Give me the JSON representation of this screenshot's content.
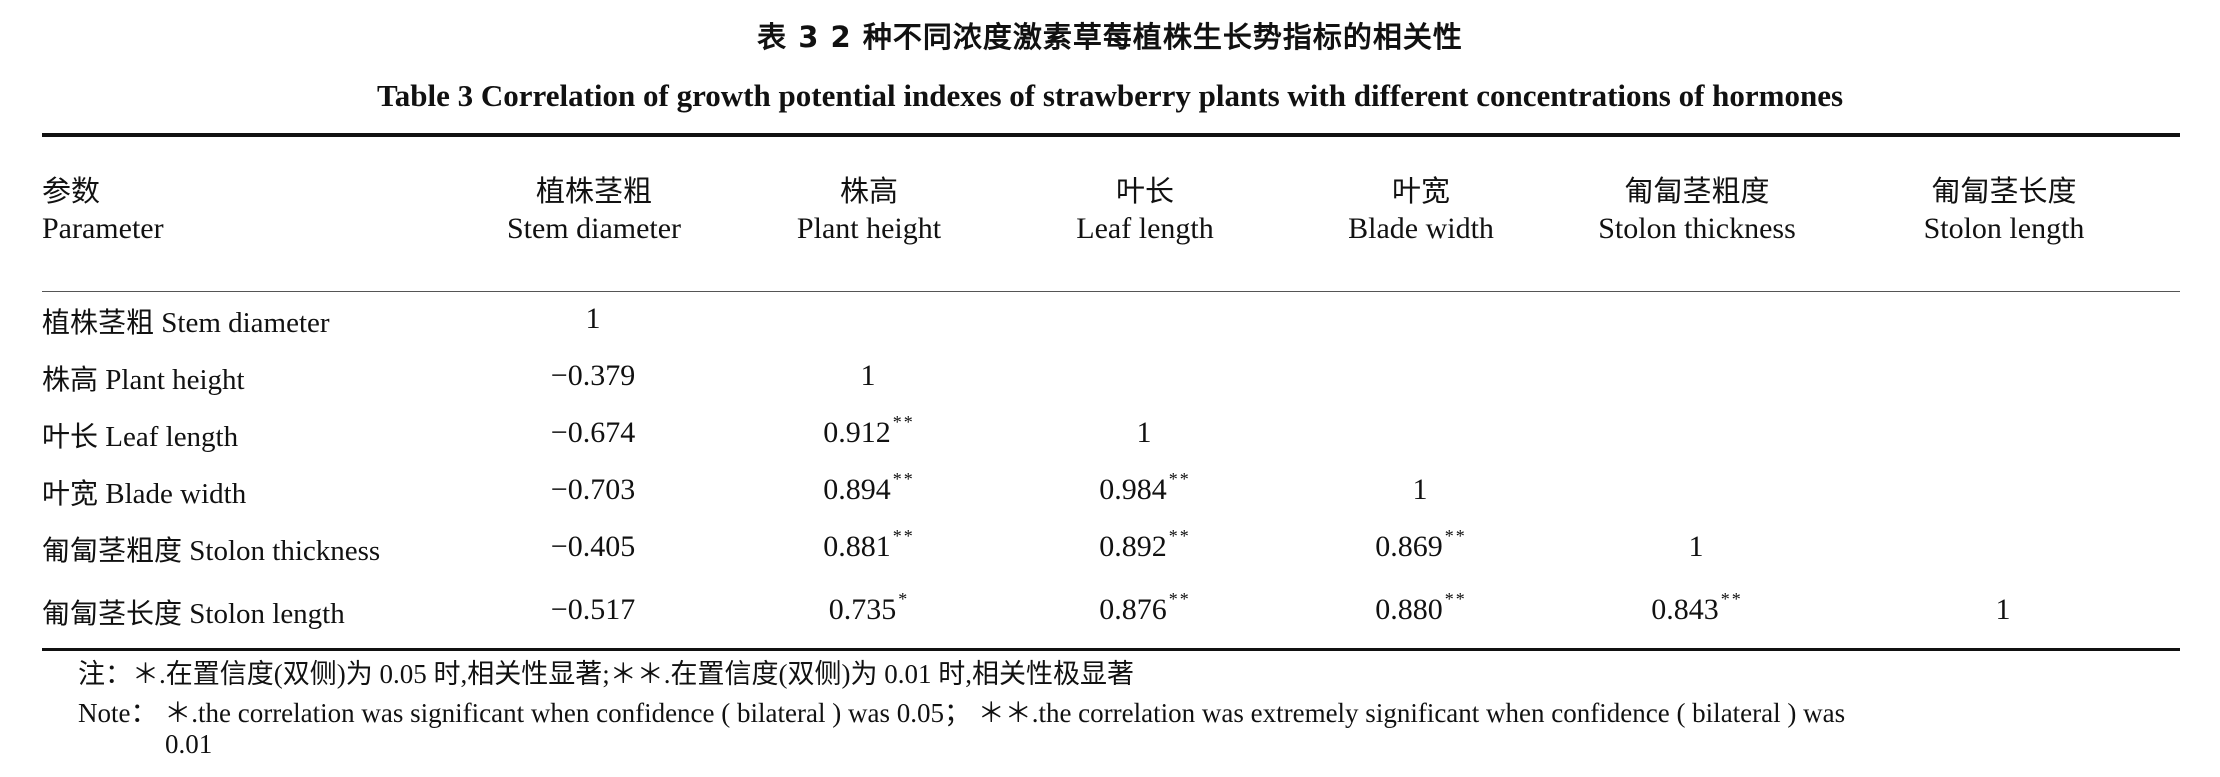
{
  "caption": {
    "cn": "表 3   2 种不同浓度激素草莓植株生长势指标的相关性",
    "en": "Table 3   Correlation of growth potential indexes of strawberry plants with different concentrations of hormones"
  },
  "header": {
    "param_cn": "参数",
    "param_en": "Parameter",
    "columns": [
      {
        "cn": "植株茎粗",
        "en": "Stem diameter"
      },
      {
        "cn": "株高",
        "en": "Plant height"
      },
      {
        "cn": "叶长",
        "en": "Leaf length"
      },
      {
        "cn": "叶宽",
        "en": "Blade width"
      },
      {
        "cn": "匍匐茎粗度",
        "en": "Stolon thickness"
      },
      {
        "cn": "匍匐茎长度",
        "en": "Stolon length"
      }
    ]
  },
  "rows": [
    {
      "cn": "植株茎粗",
      "en": "Stem diameter",
      "cells": [
        {
          "v": "1",
          "s": ""
        }
      ]
    },
    {
      "cn": "株高",
      "en": "Plant height",
      "cells": [
        {
          "v": "−0.379",
          "s": ""
        },
        {
          "v": "1",
          "s": ""
        }
      ]
    },
    {
      "cn": "叶长",
      "en": "Leaf length",
      "cells": [
        {
          "v": "−0.674",
          "s": ""
        },
        {
          "v": "0.912",
          "s": "**"
        },
        {
          "v": "1",
          "s": ""
        }
      ]
    },
    {
      "cn": "叶宽",
      "en": "Blade width",
      "cells": [
        {
          "v": "−0.703",
          "s": ""
        },
        {
          "v": "0.894",
          "s": "**"
        },
        {
          "v": "0.984",
          "s": "**"
        },
        {
          "v": "1",
          "s": ""
        }
      ]
    },
    {
      "cn": "匍匐茎粗度",
      "en": "Stolon thickness",
      "cells": [
        {
          "v": "−0.405",
          "s": ""
        },
        {
          "v": "0.881",
          "s": "**"
        },
        {
          "v": "0.892",
          "s": "**"
        },
        {
          "v": "0.869",
          "s": "**"
        },
        {
          "v": "1",
          "s": ""
        }
      ]
    },
    {
      "cn": "匍匐茎长度",
      "en": "Stolon length",
      "cells": [
        {
          "v": "−0.517",
          "s": ""
        },
        {
          "v": "0.735",
          "s": "*"
        },
        {
          "v": "0.876",
          "s": "**"
        },
        {
          "v": "0.880",
          "s": "**"
        },
        {
          "v": "0.843",
          "s": "**"
        },
        {
          "v": "1",
          "s": ""
        }
      ]
    }
  ],
  "notes": {
    "cn": "注：＊.在置信度(双侧)为 0.05 时,相关性显著;＊＊.在置信度(双侧)为 0.01 时,相关性极显著",
    "en_line1": "Note： ＊.the correlation was significant when confidence ( bilateral ) was 0.05； ＊＊.the correlation was extremely significant when confidence ( bilateral ) was",
    "en_line2": "0.01"
  }
}
